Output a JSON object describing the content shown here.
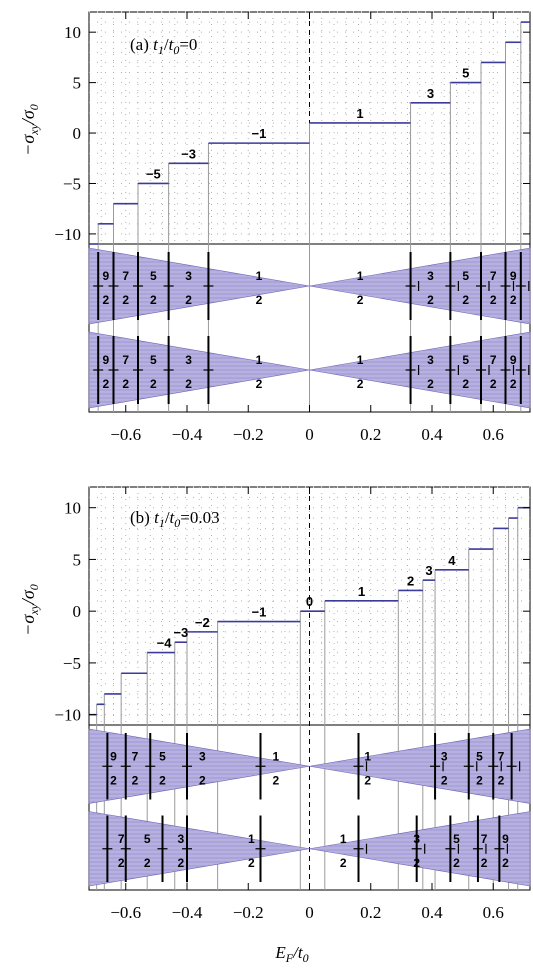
{
  "figure": {
    "xlabel": "E_F/t_0",
    "ylabel": "−σ_xy/σ_0"
  },
  "chart_data": [
    {
      "type": "line",
      "panel": "a",
      "title": "(a) t_1/t_0=0",
      "title_prefix": "(a) ",
      "title_ratio_num": "t",
      "title_ratio_num_sub": "1",
      "title_ratio_den": "t",
      "title_ratio_den_sub": "0",
      "title_value": "=0",
      "xlim": [
        -0.72,
        0.72
      ],
      "ylim": [
        -11,
        12
      ],
      "xticks": [
        -0.6,
        -0.4,
        -0.2,
        0,
        0.2,
        0.4,
        0.6
      ],
      "xtick_labels": [
        "−0.6",
        "−0.4",
        "−0.2",
        "0",
        "0.2",
        "0.4",
        "0.6"
      ],
      "yticks": [
        -10,
        -5,
        0,
        5,
        10
      ],
      "ytick_labels": [
        "−10",
        "−5",
        "0",
        "5",
        "10"
      ],
      "steps": [
        {
          "x0": -0.72,
          "x1": -0.69,
          "y": -11
        },
        {
          "x0": -0.69,
          "x1": -0.64,
          "y": -9
        },
        {
          "x0": -0.64,
          "x1": -0.56,
          "y": -7
        },
        {
          "x0": -0.56,
          "x1": -0.46,
          "y": -5
        },
        {
          "x0": -0.46,
          "x1": -0.33,
          "y": -3
        },
        {
          "x0": -0.33,
          "x1": 0.0,
          "y": -1
        },
        {
          "x0": 0.0,
          "x1": 0.33,
          "y": 1
        },
        {
          "x0": 0.33,
          "x1": 0.46,
          "y": 3
        },
        {
          "x0": 0.46,
          "x1": 0.56,
          "y": 5
        },
        {
          "x0": 0.56,
          "x1": 0.64,
          "y": 7
        },
        {
          "x0": 0.64,
          "x1": 0.69,
          "y": 9
        },
        {
          "x0": 0.69,
          "x1": 0.72,
          "y": 11
        }
      ],
      "plateau_labels": [
        {
          "x": -0.51,
          "y": -5,
          "text": "−5"
        },
        {
          "x": -0.395,
          "y": -3,
          "text": "−3"
        },
        {
          "x": -0.165,
          "y": -1,
          "text": "−1"
        },
        {
          "x": 0.165,
          "y": 1,
          "text": "1"
        },
        {
          "x": 0.395,
          "y": 3,
          "text": "3"
        },
        {
          "x": 0.51,
          "y": 5,
          "text": "5"
        }
      ],
      "bands": [
        {
          "labels": [
            {
              "x": -0.665,
              "num": "9",
              "den": "2",
              "sign": ""
            },
            {
              "x": -0.6,
              "num": "7",
              "den": "2",
              "sign": ""
            },
            {
              "x": -0.51,
              "num": "5",
              "den": "2",
              "sign": ""
            },
            {
              "x": -0.395,
              "num": "3",
              "den": "2",
              "sign": ""
            },
            {
              "x": -0.165,
              "num": "1",
              "den": "2",
              "sign": ""
            },
            {
              "x": 0.165,
              "num": "1",
              "den": "2",
              "sign": ""
            },
            {
              "x": 0.395,
              "num": "3",
              "den": "2",
              "sign": ""
            },
            {
              "x": 0.51,
              "num": "5",
              "den": "2",
              "sign": ""
            },
            {
              "x": 0.6,
              "num": "7",
              "den": "2",
              "sign": ""
            },
            {
              "x": 0.665,
              "num": "9",
              "den": "2",
              "sign": ""
            }
          ],
          "signs": [
            {
              "x": -0.69,
              "text": "−"
            },
            {
              "x": -0.64,
              "text": "−"
            },
            {
              "x": -0.56,
              "text": "−"
            },
            {
              "x": -0.46,
              "text": "−"
            },
            {
              "x": -0.33,
              "text": "−"
            },
            {
              "x": 0.33,
              "text": "+"
            },
            {
              "x": 0.46,
              "text": "+"
            },
            {
              "x": 0.56,
              "text": "+"
            },
            {
              "x": 0.64,
              "text": "+"
            },
            {
              "x": 0.69,
              "text": "+"
            }
          ]
        },
        {
          "labels": [
            {
              "x": -0.665,
              "num": "9",
              "den": "2",
              "sign": ""
            },
            {
              "x": -0.6,
              "num": "7",
              "den": "2",
              "sign": ""
            },
            {
              "x": -0.51,
              "num": "5",
              "den": "2",
              "sign": ""
            },
            {
              "x": -0.395,
              "num": "3",
              "den": "2",
              "sign": ""
            },
            {
              "x": -0.165,
              "num": "1",
              "den": "2",
              "sign": ""
            },
            {
              "x": 0.165,
              "num": "1",
              "den": "2",
              "sign": ""
            },
            {
              "x": 0.395,
              "num": "3",
              "den": "2",
              "sign": ""
            },
            {
              "x": 0.51,
              "num": "5",
              "den": "2",
              "sign": ""
            },
            {
              "x": 0.6,
              "num": "7",
              "den": "2",
              "sign": ""
            },
            {
              "x": 0.665,
              "num": "9",
              "den": "2",
              "sign": ""
            }
          ],
          "signs": [
            {
              "x": -0.69,
              "text": "−"
            },
            {
              "x": -0.64,
              "text": "−"
            },
            {
              "x": -0.56,
              "text": "−"
            },
            {
              "x": -0.46,
              "text": "−"
            },
            {
              "x": -0.33,
              "text": "−"
            },
            {
              "x": 0.33,
              "text": "+"
            },
            {
              "x": 0.46,
              "text": "+"
            },
            {
              "x": 0.56,
              "text": "+"
            },
            {
              "x": 0.64,
              "text": "+"
            },
            {
              "x": 0.69,
              "text": "+"
            }
          ]
        }
      ]
    },
    {
      "type": "line",
      "panel": "b",
      "title": "(b) t_1/t_0=0.03",
      "title_prefix": "(b) ",
      "title_ratio_num": "t",
      "title_ratio_num_sub": "1",
      "title_ratio_den": "t",
      "title_ratio_den_sub": "0",
      "title_value": "=0.03",
      "xlim": [
        -0.72,
        0.72
      ],
      "ylim": [
        -11,
        12
      ],
      "xticks": [
        -0.6,
        -0.4,
        -0.2,
        0,
        0.2,
        0.4,
        0.6
      ],
      "xtick_labels": [
        "−0.6",
        "−0.4",
        "−0.2",
        "0",
        "0.2",
        "0.4",
        "0.6"
      ],
      "yticks": [
        -10,
        -5,
        0,
        5,
        10
      ],
      "ytick_labels": [
        "−10",
        "−5",
        "0",
        "5",
        "10"
      ],
      "steps": [
        {
          "x0": -0.72,
          "x1": -0.695,
          "y": -10
        },
        {
          "x0": -0.695,
          "x1": -0.67,
          "y": -9
        },
        {
          "x0": -0.67,
          "x1": -0.615,
          "y": -8
        },
        {
          "x0": -0.615,
          "x1": -0.53,
          "y": -6
        },
        {
          "x0": -0.53,
          "x1": -0.44,
          "y": -4
        },
        {
          "x0": -0.44,
          "x1": -0.4,
          "y": -3
        },
        {
          "x0": -0.4,
          "x1": -0.3,
          "y": -2
        },
        {
          "x0": -0.3,
          "x1": -0.03,
          "y": -1
        },
        {
          "x0": -0.03,
          "x1": 0.05,
          "y": 0
        },
        {
          "x0": 0.05,
          "x1": 0.29,
          "y": 1
        },
        {
          "x0": 0.29,
          "x1": 0.37,
          "y": 2
        },
        {
          "x0": 0.37,
          "x1": 0.41,
          "y": 3
        },
        {
          "x0": 0.41,
          "x1": 0.52,
          "y": 4
        },
        {
          "x0": 0.52,
          "x1": 0.6,
          "y": 6
        },
        {
          "x0": 0.6,
          "x1": 0.65,
          "y": 8
        },
        {
          "x0": 0.65,
          "x1": 0.68,
          "y": 9
        },
        {
          "x0": 0.68,
          "x1": 0.72,
          "y": 10
        }
      ],
      "plateau_labels": [
        {
          "x": -0.475,
          "y": -4,
          "text": "−4"
        },
        {
          "x": -0.42,
          "y": -3,
          "text": "−3"
        },
        {
          "x": -0.35,
          "y": -2,
          "text": "−2"
        },
        {
          "x": -0.165,
          "y": -1,
          "text": "−1"
        },
        {
          "x": 0.0,
          "y": 0,
          "text": "0"
        },
        {
          "x": 0.17,
          "y": 1,
          "text": "1"
        },
        {
          "x": 0.33,
          "y": 2,
          "text": "2"
        },
        {
          "x": 0.39,
          "y": 3,
          "text": "3"
        },
        {
          "x": 0.465,
          "y": 4,
          "text": "4"
        }
      ],
      "bands": [
        {
          "labels": [
            {
              "x": -0.64,
              "num": "9",
              "den": "2",
              "sign": ""
            },
            {
              "x": -0.57,
              "num": "7",
              "den": "2",
              "sign": ""
            },
            {
              "x": -0.48,
              "num": "5",
              "den": "2",
              "sign": ""
            },
            {
              "x": -0.35,
              "num": "3",
              "den": "2",
              "sign": ""
            },
            {
              "x": -0.11,
              "num": "1",
              "den": "2",
              "sign": ""
            },
            {
              "x": 0.19,
              "num": "1",
              "den": "2",
              "sign": ""
            },
            {
              "x": 0.44,
              "num": "3",
              "den": "2",
              "sign": ""
            },
            {
              "x": 0.555,
              "num": "5",
              "den": "2",
              "sign": ""
            },
            {
              "x": 0.625,
              "num": "7",
              "den": "2",
              "sign": ""
            }
          ],
          "signs": [
            {
              "x": -0.66,
              "text": "−"
            },
            {
              "x": -0.6,
              "text": "−"
            },
            {
              "x": -0.52,
              "text": "−"
            },
            {
              "x": -0.4,
              "text": "−"
            },
            {
              "x": -0.16,
              "text": "−"
            },
            {
              "x": 0.16,
              "text": "+"
            },
            {
              "x": 0.41,
              "text": "+"
            },
            {
              "x": 0.52,
              "text": "+"
            },
            {
              "x": 0.6,
              "text": "+"
            },
            {
              "x": 0.66,
              "text": "+"
            }
          ]
        },
        {
          "labels": [
            {
              "x": -0.615,
              "num": "7",
              "den": "2",
              "sign": ""
            },
            {
              "x": -0.53,
              "num": "5",
              "den": "2",
              "sign": ""
            },
            {
              "x": -0.42,
              "num": "3",
              "den": "2",
              "sign": ""
            },
            {
              "x": -0.19,
              "num": "1",
              "den": "2",
              "sign": ""
            },
            {
              "x": 0.11,
              "num": "1",
              "den": "2",
              "sign": ""
            },
            {
              "x": 0.35,
              "num": "3",
              "den": "2",
              "sign": ""
            },
            {
              "x": 0.48,
              "num": "5",
              "den": "2",
              "sign": ""
            },
            {
              "x": 0.57,
              "num": "7",
              "den": "2",
              "sign": ""
            },
            {
              "x": 0.64,
              "num": "9",
              "den": "2",
              "sign": ""
            }
          ],
          "signs": [
            {
              "x": -0.66,
              "text": "−"
            },
            {
              "x": -0.6,
              "text": "−"
            },
            {
              "x": -0.48,
              "text": "−"
            },
            {
              "x": -0.4,
              "text": "−"
            },
            {
              "x": -0.16,
              "text": "−"
            },
            {
              "x": 0.16,
              "text": "+"
            },
            {
              "x": 0.35,
              "text": "+"
            },
            {
              "x": 0.46,
              "text": "+"
            },
            {
              "x": 0.55,
              "text": "+"
            },
            {
              "x": 0.62,
              "text": "+"
            }
          ]
        }
      ]
    }
  ],
  "colors": {
    "step_line": "#3b3b9a",
    "drop_line": "#9a9a9a",
    "band_fill": "#a9a3d8",
    "band_edge": "#6c64b8",
    "grid": "#b0b0b0"
  }
}
